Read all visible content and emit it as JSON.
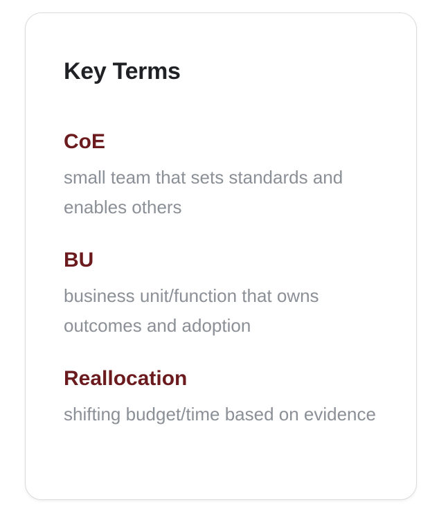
{
  "card": {
    "title": "Key Terms",
    "terms": [
      {
        "term": "CoE",
        "definition": "small team that sets standards and enables others"
      },
      {
        "term": "BU",
        "definition": "business unit/function that owns outcomes and adoption"
      },
      {
        "term": "Reallocation",
        "definition": "shifting budget/time based on evidence"
      }
    ]
  },
  "colors": {
    "title": "#1f2125",
    "term_accent": "#6b1a1e",
    "definition_text": "#8b9097",
    "card_border": "#d9dbde"
  }
}
